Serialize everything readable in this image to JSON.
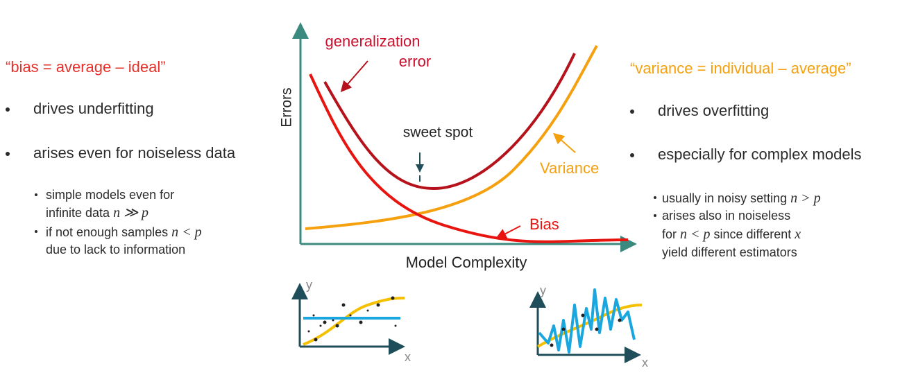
{
  "left": {
    "quote": "“bias = average – ideal”",
    "bullets": [
      "drives underfitting",
      "arises even for noiseless data"
    ],
    "subbullets": [
      [
        [
          "simple models even for"
        ],
        [
          "infinite data ",
          "n ≫ p"
        ]
      ],
      [
        [
          "if not enough samples ",
          "n < p"
        ],
        [
          "due to lack to information"
        ]
      ]
    ]
  },
  "right": {
    "quote": "“variance = individual – average”",
    "bullets": [
      "drives overfitting",
      "especially for complex models"
    ],
    "subbullets": [
      [
        [
          "usually in noisy setting ",
          "n > p"
        ]
      ],
      [
        [
          "arises also in noiseless"
        ],
        [
          "for ",
          "n < p",
          " since different ",
          "x"
        ],
        [
          "yield different estimators"
        ]
      ]
    ]
  },
  "diagram": {
    "y_axis": "Errors",
    "x_axis": "Model Complexity",
    "generalization": [
      "generalization",
      "error"
    ],
    "sweet_spot": "sweet spot",
    "variance": "Variance",
    "bias": "Bias",
    "small_plots": [
      {
        "y": "y",
        "x": "x"
      },
      {
        "y": "y",
        "x": "x"
      }
    ]
  }
}
